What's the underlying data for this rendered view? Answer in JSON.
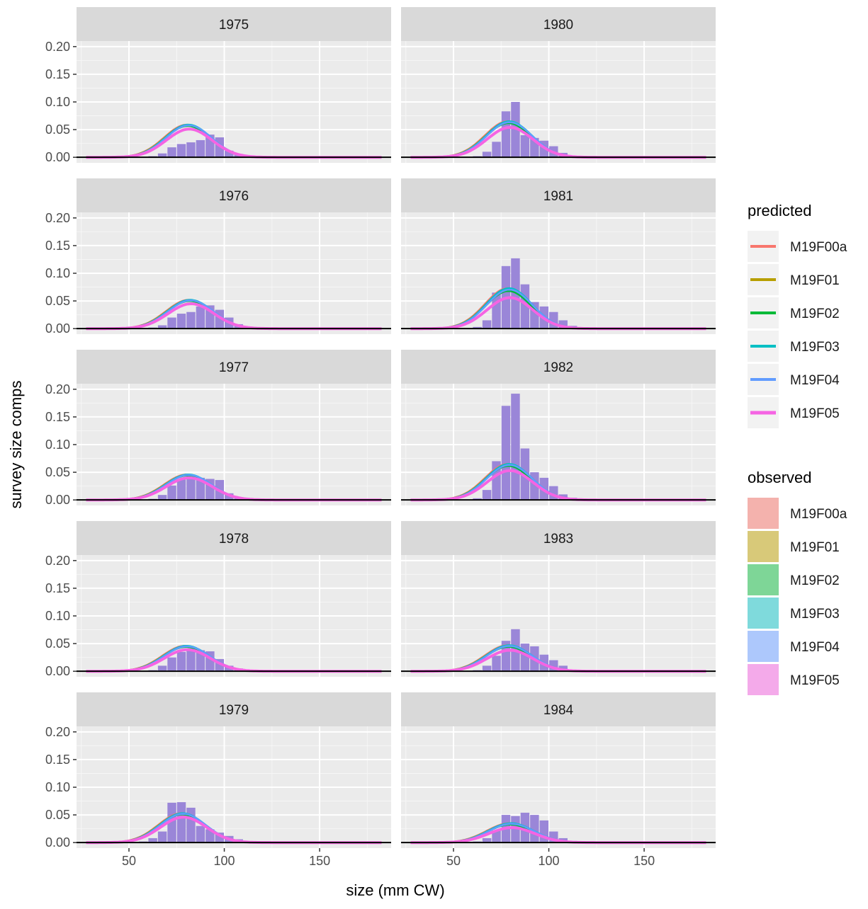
{
  "chart_data": {
    "type": "bar",
    "xlabel": "size (mm CW)",
    "ylabel": "survey size comps",
    "xlim": [
      22.5,
      187.5
    ],
    "ylim": [
      -0.01,
      0.21
    ],
    "x_ticks": [
      50,
      100,
      150
    ],
    "y_ticks": [
      0.0,
      0.05,
      0.1,
      0.15,
      0.2
    ],
    "y_tick_labels": [
      "0.00",
      "0.05",
      "0.10",
      "0.15",
      "0.20"
    ],
    "bins": [
      27.5,
      32.5,
      37.5,
      42.5,
      47.5,
      52.5,
      57.5,
      62.5,
      67.5,
      72.5,
      77.5,
      82.5,
      87.5,
      92.5,
      97.5,
      102.5,
      107.5,
      112.5,
      117.5,
      122.5,
      127.5,
      132.5,
      137.5,
      142.5,
      147.5,
      152.5,
      157.5,
      162.5,
      167.5,
      172.5,
      177.5,
      182.5
    ],
    "bar_color": "#9a86d8",
    "legend_placement": "right",
    "legend_predicted": {
      "title": "predicted",
      "entries": [
        {
          "label": "M19F00a",
          "color": "#F8766D"
        },
        {
          "label": "M19F01",
          "color": "#B79F00"
        },
        {
          "label": "M19F02",
          "color": "#00BA38"
        },
        {
          "label": "M19F03",
          "color": "#00BFC4"
        },
        {
          "label": "M19F04",
          "color": "#619CFF"
        },
        {
          "label": "M19F05",
          "color": "#F564E3"
        }
      ]
    },
    "legend_observed": {
      "title": "observed",
      "entries": [
        {
          "label": "M19F00a",
          "color": "#F4B2AD"
        },
        {
          "label": "M19F01",
          "color": "#D8C979"
        },
        {
          "label": "M19F02",
          "color": "#7ED697"
        },
        {
          "label": "M19F03",
          "color": "#7FDADC"
        },
        {
          "label": "M19F04",
          "color": "#ADC8FC"
        },
        {
          "label": "M19F05",
          "color": "#F4AAEA"
        }
      ]
    },
    "panels": [
      {
        "year": "1975",
        "observed": [
          0,
          0,
          0,
          0,
          0,
          0,
          0,
          0.002,
          0.007,
          0.018,
          0.024,
          0.027,
          0.031,
          0.041,
          0.036,
          0.012,
          0.006,
          0.002,
          0.001,
          0,
          0,
          0,
          0,
          0,
          0,
          0,
          0,
          0,
          0,
          0,
          0,
          0
        ],
        "peak_low": 0.051,
        "peak_high": 0.059,
        "mu": 81,
        "sigma": 12
      },
      {
        "year": "1976",
        "observed": [
          0,
          0,
          0,
          0,
          0,
          0,
          0,
          0.002,
          0.006,
          0.02,
          0.027,
          0.03,
          0.04,
          0.042,
          0.034,
          0.02,
          0.008,
          0.002,
          0.001,
          0,
          0,
          0,
          0,
          0,
          0,
          0,
          0,
          0,
          0,
          0,
          0,
          0
        ],
        "peak_low": 0.045,
        "peak_high": 0.052,
        "mu": 82,
        "sigma": 12
      },
      {
        "year": "1977",
        "observed": [
          0,
          0,
          0,
          0,
          0,
          0,
          0,
          0.002,
          0.009,
          0.026,
          0.037,
          0.04,
          0.04,
          0.038,
          0.036,
          0.012,
          0.005,
          0.002,
          0.001,
          0,
          0,
          0,
          0,
          0,
          0,
          0,
          0,
          0,
          0,
          0,
          0,
          0
        ],
        "peak_low": 0.04,
        "peak_high": 0.046,
        "mu": 81,
        "sigma": 12
      },
      {
        "year": "1978",
        "observed": [
          0,
          0,
          0,
          0,
          0,
          0,
          0,
          0.002,
          0.01,
          0.025,
          0.035,
          0.04,
          0.038,
          0.036,
          0.022,
          0.01,
          0.005,
          0.002,
          0.001,
          0,
          0,
          0,
          0,
          0,
          0,
          0,
          0,
          0,
          0,
          0,
          0,
          0
        ],
        "peak_low": 0.039,
        "peak_high": 0.046,
        "mu": 80,
        "sigma": 12
      },
      {
        "year": "1979",
        "observed": [
          0,
          0,
          0,
          0,
          0,
          0,
          0.002,
          0.008,
          0.02,
          0.072,
          0.073,
          0.063,
          0.03,
          0.024,
          0.018,
          0.012,
          0.006,
          0.002,
          0.001,
          0,
          0,
          0,
          0,
          0,
          0,
          0,
          0,
          0,
          0,
          0,
          0,
          0
        ],
        "peak_low": 0.046,
        "peak_high": 0.053,
        "mu": 78,
        "sigma": 12
      },
      {
        "year": "1980",
        "observed": [
          0,
          0,
          0,
          0,
          0,
          0,
          0,
          0.002,
          0.01,
          0.028,
          0.083,
          0.1,
          0.04,
          0.035,
          0.03,
          0.02,
          0.008,
          0.003,
          0.001,
          0,
          0,
          0,
          0,
          0,
          0,
          0,
          0,
          0,
          0,
          0,
          0,
          0
        ],
        "peak_low": 0.054,
        "peak_high": 0.065,
        "mu": 79,
        "sigma": 12
      },
      {
        "year": "1981",
        "observed": [
          0,
          0,
          0,
          0,
          0,
          0,
          0,
          0.003,
          0.015,
          0.065,
          0.113,
          0.127,
          0.08,
          0.048,
          0.04,
          0.03,
          0.015,
          0.005,
          0.002,
          0,
          0,
          0,
          0,
          0,
          0,
          0,
          0,
          0,
          0,
          0,
          0,
          0
        ],
        "peak_low": 0.056,
        "peak_high": 0.073,
        "mu": 79,
        "sigma": 12
      },
      {
        "year": "1982",
        "observed": [
          0,
          0,
          0,
          0,
          0,
          0,
          0,
          0.003,
          0.018,
          0.07,
          0.17,
          0.192,
          0.093,
          0.05,
          0.04,
          0.025,
          0.01,
          0.004,
          0.001,
          0,
          0,
          0,
          0,
          0,
          0,
          0,
          0,
          0,
          0,
          0,
          0,
          0
        ],
        "peak_low": 0.053,
        "peak_high": 0.065,
        "mu": 79,
        "sigma": 12
      },
      {
        "year": "1983",
        "observed": [
          0,
          0,
          0,
          0,
          0,
          0,
          0,
          0.002,
          0.01,
          0.028,
          0.055,
          0.076,
          0.05,
          0.045,
          0.03,
          0.02,
          0.01,
          0.003,
          0.001,
          0,
          0,
          0,
          0,
          0,
          0,
          0,
          0,
          0,
          0,
          0,
          0,
          0
        ],
        "peak_low": 0.038,
        "peak_high": 0.047,
        "mu": 79,
        "sigma": 12
      },
      {
        "year": "1984",
        "observed": [
          0,
          0,
          0,
          0,
          0,
          0,
          0,
          0.002,
          0.008,
          0.022,
          0.05,
          0.048,
          0.054,
          0.05,
          0.04,
          0.02,
          0.008,
          0.003,
          0.001,
          0,
          0,
          0,
          0,
          0,
          0,
          0,
          0,
          0,
          0,
          0,
          0,
          0
        ],
        "peak_low": 0.027,
        "peak_high": 0.035,
        "mu": 80,
        "sigma": 12
      }
    ]
  }
}
